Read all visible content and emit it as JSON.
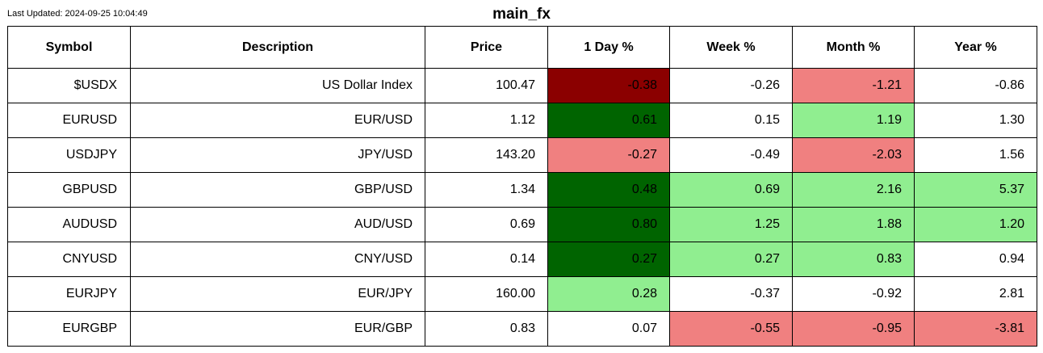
{
  "header": {
    "last_updated": "Last Updated: 2024-09-25 10:04:49",
    "title": "main_fx"
  },
  "table": {
    "columns": [
      "Symbol",
      "Description",
      "Price",
      "1 Day %",
      "Week %",
      "Month %",
      "Year %"
    ],
    "rows": [
      {
        "symbol": "$USDX",
        "description": "US Dollar Index",
        "price": "100.47",
        "day": "-0.38",
        "week": "-0.26",
        "month": "-1.21",
        "year": "-0.86"
      },
      {
        "symbol": "EURUSD",
        "description": "EUR/USD",
        "price": "1.12",
        "day": "0.61",
        "week": "0.15",
        "month": "1.19",
        "year": "1.30"
      },
      {
        "symbol": "USDJPY",
        "description": "JPY/USD",
        "price": "143.20",
        "day": "-0.27",
        "week": "-0.49",
        "month": "-2.03",
        "year": "1.56"
      },
      {
        "symbol": "GBPUSD",
        "description": "GBP/USD",
        "price": "1.34",
        "day": "0.48",
        "week": "0.69",
        "month": "2.16",
        "year": "5.37"
      },
      {
        "symbol": "AUDUSD",
        "description": "AUD/USD",
        "price": "0.69",
        "day": "0.80",
        "week": "1.25",
        "month": "1.88",
        "year": "1.20"
      },
      {
        "symbol": "CNYUSD",
        "description": "CNY/USD",
        "price": "0.14",
        "day": "0.27",
        "week": "0.27",
        "month": "0.83",
        "year": "0.94"
      },
      {
        "symbol": "EURJPY",
        "description": "EUR/JPY",
        "price": "160.00",
        "day": "0.28",
        "week": "-0.37",
        "month": "-0.92",
        "year": "2.81"
      },
      {
        "symbol": "EURGBP",
        "description": "EUR/GBP",
        "price": "0.83",
        "day": "0.07",
        "week": "-0.55",
        "month": "-0.95",
        "year": "-3.81"
      }
    ]
  },
  "colors": {
    "strong_negative": "#8b0000",
    "strong_positive": "#006400",
    "negative": "#f08080",
    "positive": "#90ee90",
    "neutral": "#ffffff",
    "border": "#000000"
  }
}
